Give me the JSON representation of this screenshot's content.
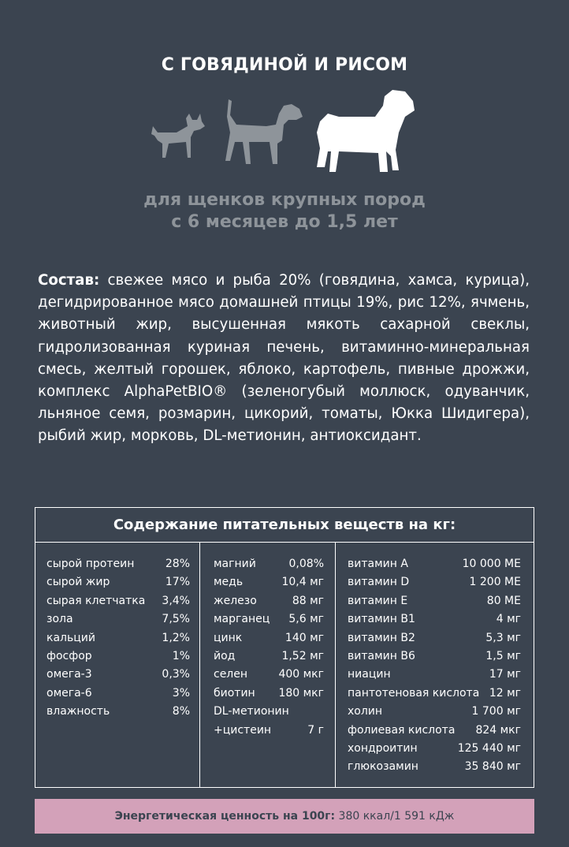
{
  "title": "С ГОВЯДИНОЙ И РИСОМ",
  "icons": [
    "small-dog-icon",
    "medium-dog-icon",
    "large-dog-icon"
  ],
  "colors": {
    "background": "#3b4450",
    "accent_dog": "#ffffff",
    "muted": "#8e949a",
    "energy_bar": "#d3a1b9"
  },
  "subtitle": {
    "line1": "для щенков крупных пород",
    "line2": "с 6 месяцев до 1,5 лет"
  },
  "composition": {
    "label": "Состав:",
    "text": " свежее мясо и рыба 20% (говядина, хамса, курица), дегидрированное мясо домашней птицы 19%, рис 12%, ячмень, животный жир, высушенная мякоть сахарной свеклы, гидролизованная куриная печень, витаминно-минеральная смесь, желтый горошек, яблоко, картофель, пивные дрожжи, комплекс AlphaPetBIO® (зеленогубый моллюск, одуванчик, льняное семя, розмарин, цикорий, томаты, Юкка Шидигера), рыбий жир, морковь, DL-метионин, антиоксидант."
  },
  "nutrients": {
    "title": "Содержание питательных веществ на кг:",
    "col1": [
      {
        "name": "сырой протеин",
        "value": "28%"
      },
      {
        "name": "сырой жир",
        "value": "17%"
      },
      {
        "name": "сырая клетчатка",
        "value": "3,4%"
      },
      {
        "name": "зола",
        "value": "7,5%"
      },
      {
        "name": "кальций",
        "value": "1,2%"
      },
      {
        "name": "фосфор",
        "value": "1%"
      },
      {
        "name": "омега-3",
        "value": "0,3%"
      },
      {
        "name": "омега-6",
        "value": "3%"
      },
      {
        "name": "влажность",
        "value": "8%"
      }
    ],
    "col2": [
      {
        "name": "магний",
        "value": "0,08%"
      },
      {
        "name": "медь",
        "value": "10,4 мг"
      },
      {
        "name": "железо",
        "value": "88 мг"
      },
      {
        "name": "марганец",
        "value": "5,6 мг"
      },
      {
        "name": "цинк",
        "value": "140 мг"
      },
      {
        "name": "йод",
        "value": "1,52 мг"
      },
      {
        "name": "селен",
        "value": "400 мкг"
      },
      {
        "name": "биотин",
        "value": "180 мкг"
      },
      {
        "name": "DL-метионин",
        "value": ""
      },
      {
        "name": "+цистеин",
        "value": "7 г"
      }
    ],
    "col3": [
      {
        "name": "витамин А",
        "value": "10 000 МЕ"
      },
      {
        "name": "витамин D",
        "value": "1 200 МЕ"
      },
      {
        "name": "витамин Е",
        "value": "80 МЕ"
      },
      {
        "name": "витамин В1",
        "value": "4 мг"
      },
      {
        "name": "витамин В2",
        "value": "5,3 мг"
      },
      {
        "name": "витамин В6",
        "value": "1,5 мг"
      },
      {
        "name": "ниацин",
        "value": "17 мг"
      },
      {
        "name": "пантотеновая кислота",
        "value": "12 мг"
      },
      {
        "name": "холин",
        "value": "1 700 мг"
      },
      {
        "name": "фолиевая кислота",
        "value": "824 мкг"
      },
      {
        "name": "хондроитин",
        "value": "125 440 мг"
      },
      {
        "name": "глюкозамин",
        "value": "35 840 мг"
      }
    ]
  },
  "energy": {
    "label": "Энергетическая ценность на 100г:",
    "value": " 380 ккал/1 591 кДж"
  }
}
